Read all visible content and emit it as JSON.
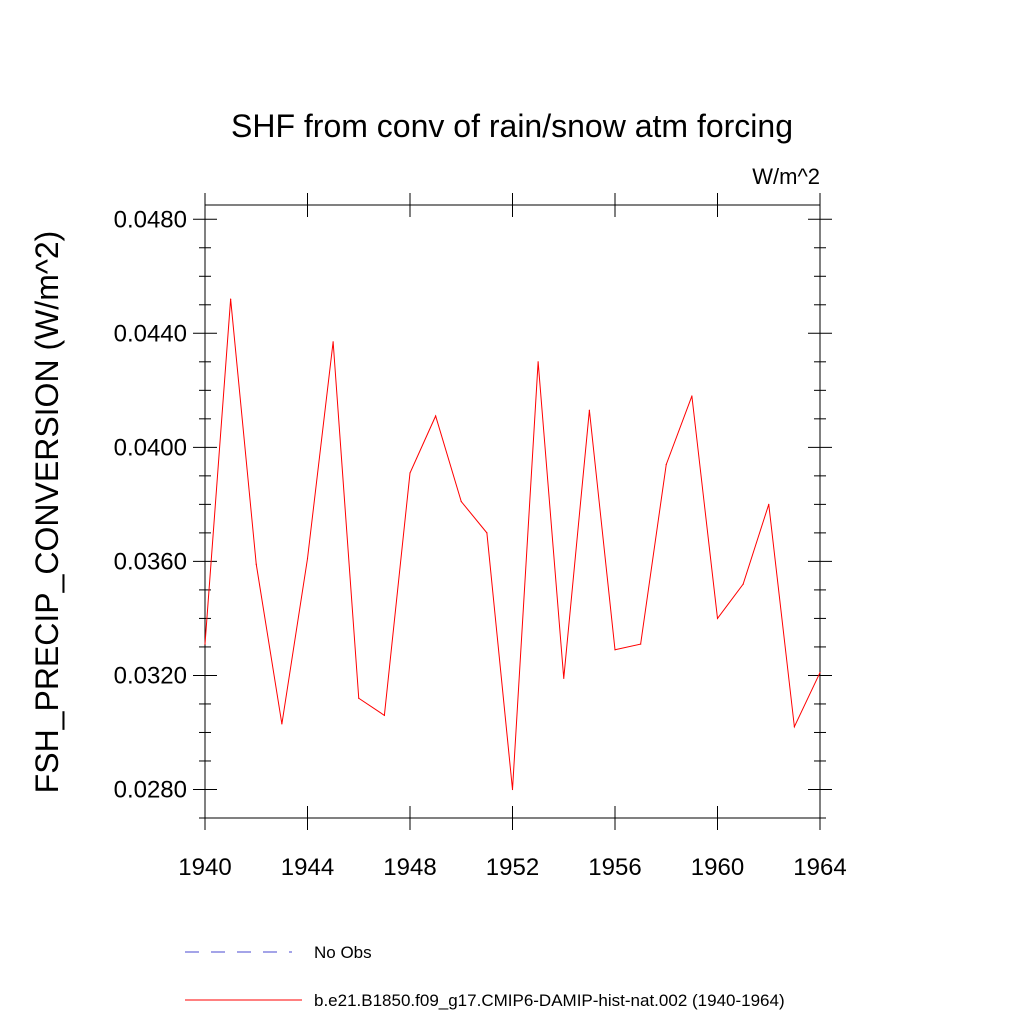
{
  "chart_data": {
    "type": "line",
    "title": "SHF from conv of rain/snow atm forcing",
    "units": "W/m^2",
    "xlabel": "",
    "ylabel": "FSH_PRECIP_CONVERSION  (W/m^2)",
    "xlim": [
      1940,
      1964
    ],
    "ylim": [
      0.027,
      0.0485
    ],
    "x_ticks": [
      1940,
      1944,
      1948,
      1952,
      1956,
      1960,
      1964
    ],
    "x_tick_labels": [
      "1940",
      "1944",
      "1948",
      "1952",
      "1956",
      "1960",
      "1964"
    ],
    "y_ticks": [
      0.028,
      0.032,
      0.036,
      0.04,
      0.044,
      0.048
    ],
    "y_tick_labels": [
      "0.0280",
      "0.0320",
      "0.0360",
      "0.0400",
      "0.0440",
      "0.0480"
    ],
    "grid": false,
    "legend_position": "bottom",
    "series": [
      {
        "name": "No Obs",
        "color": "#4a4ad0",
        "style": "dashed",
        "values": []
      },
      {
        "name": "b.e21.B1850.f09_g17.CMIP6-DAMIP-hist-nat.002 (1940-1964)",
        "color": "#ff0000",
        "style": "solid",
        "x": [
          1940,
          1941,
          1942,
          1943,
          1944,
          1945,
          1946,
          1947,
          1948,
          1949,
          1950,
          1951,
          1952,
          1953,
          1954,
          1955,
          1956,
          1957,
          1958,
          1959,
          1960,
          1961,
          1962,
          1963,
          1964
        ],
        "values": [
          0.0331,
          0.0452,
          0.0359,
          0.0303,
          0.0361,
          0.0437,
          0.0312,
          0.0306,
          0.0391,
          0.0411,
          0.0381,
          0.037,
          0.028,
          0.043,
          0.0319,
          0.0413,
          0.0329,
          0.0331,
          0.0394,
          0.0418,
          0.034,
          0.0352,
          0.038,
          0.0302,
          0.0321
        ]
      }
    ]
  }
}
